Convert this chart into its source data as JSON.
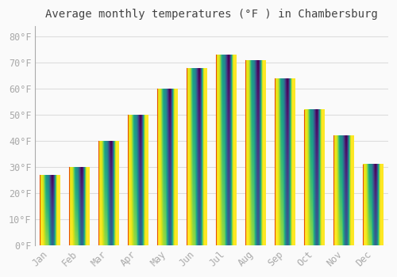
{
  "title": "Average monthly temperatures (°F ) in Chambersburg",
  "months": [
    "Jan",
    "Feb",
    "Mar",
    "Apr",
    "May",
    "Jun",
    "Jul",
    "Aug",
    "Sep",
    "Oct",
    "Nov",
    "Dec"
  ],
  "values": [
    27,
    30,
    40,
    50,
    60,
    68,
    73,
    71,
    64,
    52,
    42,
    31
  ],
  "bar_color": "#FFA726",
  "bar_edge_color": "#FB8C00",
  "background_color": "#FAFAFA",
  "grid_color": "#DDDDDD",
  "ylim": [
    0,
    84
  ],
  "yticks": [
    0,
    10,
    20,
    30,
    40,
    50,
    60,
    70,
    80
  ],
  "ytick_labels": [
    "0°F",
    "10°F",
    "20°F",
    "30°F",
    "40°F",
    "50°F",
    "60°F",
    "70°F",
    "80°F"
  ],
  "title_fontsize": 10,
  "tick_fontsize": 8.5,
  "tick_color": "#AAAAAA",
  "title_color": "#444444"
}
